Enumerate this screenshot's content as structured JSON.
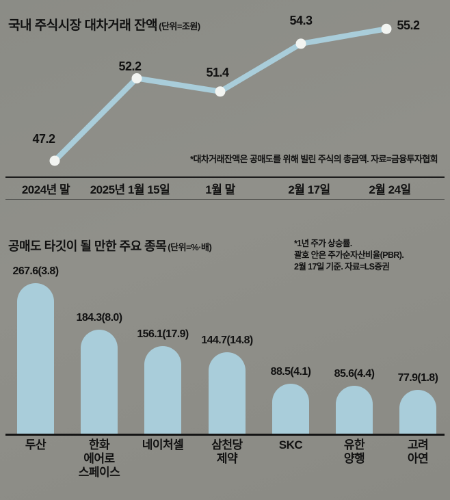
{
  "page": {
    "background": "#8e8e88",
    "accent_blue": "#a9cdda",
    "text_color": "#111111"
  },
  "chart_data": [
    {
      "type": "line",
      "title": "국내 주식시장 대차거래 잔액",
      "unit": "(단위=조원)",
      "x": [
        "2024년 말",
        "2025년 1월 15일",
        "1월 말",
        "2월 17일",
        "2월 24일"
      ],
      "values": [
        47.2,
        52.2,
        51.4,
        54.3,
        55.2
      ],
      "value_labels": [
        "47.2",
        "52.2",
        "51.4",
        "54.3",
        "55.2"
      ],
      "footnote": "*대차거래잔액은 공매도를 위해 빌린 주식의 총금액. 자료=금융투자협회",
      "ylim": [
        45,
        57
      ],
      "grid": false,
      "legend": "none",
      "line_color": "#a9cdda",
      "marker_color": "#f2f4f1"
    },
    {
      "type": "bar",
      "title": "공매도 타깃이 될 만한 주요 종목",
      "unit": "(단위=%·배)",
      "note_lines": [
        "*1년 주가 상승률.",
        "괄호 안은 주가순자산비율(PBR).",
        "2월 17일 기준. 자료=LS증권"
      ],
      "categories": [
        "두산",
        "한화\n에어로\n스페이스",
        "네이처셀",
        "삼천당\n제약",
        "SKC",
        "유한\n양행",
        "고려\n아연"
      ],
      "values": [
        267.6,
        184.3,
        156.1,
        144.7,
        88.5,
        85.6,
        77.9
      ],
      "pbr_values": [
        3.8,
        8.0,
        17.9,
        14.8,
        4.1,
        4.4,
        1.8
      ],
      "value_labels": [
        "267.6(3.8)",
        "184.3(8.0)",
        "156.1(17.9)",
        "144.7(14.8)",
        "88.5(4.1)",
        "85.6(4.4)",
        "77.9(1.8)"
      ],
      "ylim": [
        0,
        280
      ],
      "grid": false,
      "legend": "none",
      "bar_color": "#a9cdda"
    }
  ]
}
